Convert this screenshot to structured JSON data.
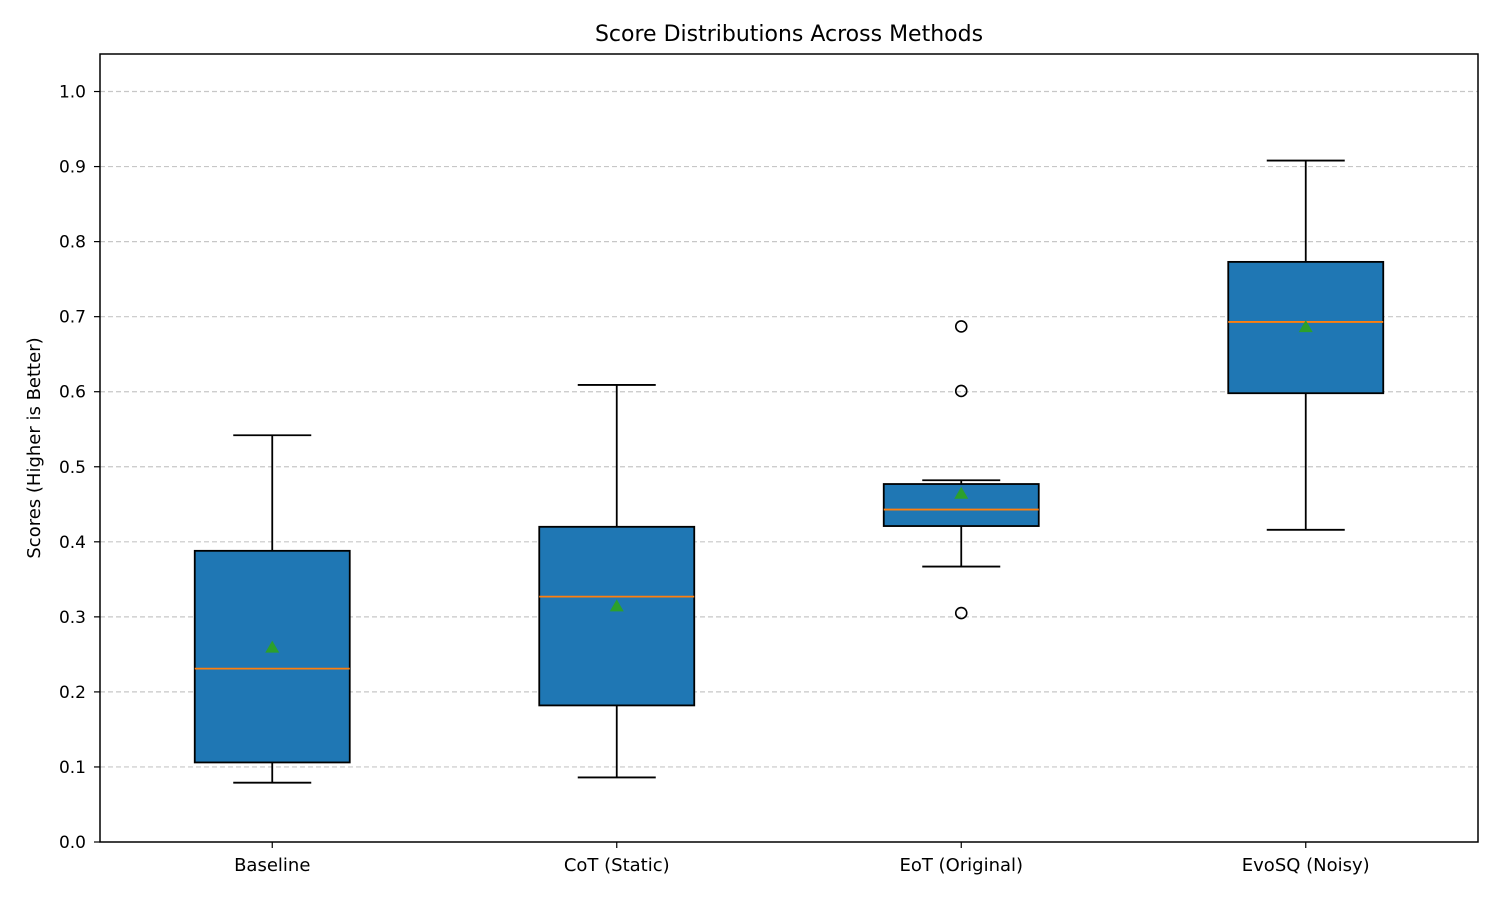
{
  "chart_data": {
    "type": "box",
    "title": "Score Distributions Across Methods",
    "xlabel": "",
    "ylabel": "Scores (Higher is Better)",
    "ylim": [
      0.0,
      1.05
    ],
    "yticks": [
      "0.0",
      "0.1",
      "0.2",
      "0.3",
      "0.4",
      "0.5",
      "0.6",
      "0.7",
      "0.8",
      "0.9",
      "1.0"
    ],
    "grid": "y-dashed",
    "categories": [
      "Baseline",
      "CoT (Static)",
      "EoT (Original)",
      "EvoSQ (Noisy)"
    ],
    "boxes": [
      {
        "whisker_low": 0.079,
        "q1": 0.106,
        "median": 0.231,
        "q3": 0.388,
        "whisker_high": 0.542,
        "mean": 0.259,
        "outliers": []
      },
      {
        "whisker_low": 0.086,
        "q1": 0.182,
        "median": 0.327,
        "q3": 0.42,
        "whisker_high": 0.609,
        "mean": 0.314,
        "outliers": []
      },
      {
        "whisker_low": 0.367,
        "q1": 0.421,
        "median": 0.443,
        "q3": 0.477,
        "whisker_high": 0.482,
        "mean": 0.464,
        "outliers": [
          0.687,
          0.601,
          0.305
        ]
      },
      {
        "whisker_low": 0.416,
        "q1": 0.598,
        "median": 0.693,
        "q3": 0.773,
        "whisker_high": 0.908,
        "mean": 0.686,
        "outliers": []
      }
    ],
    "colors": {
      "box_fill": "#1f77b4",
      "box_edge": "#000000",
      "median": "#ff7f0e",
      "mean": "#2ca02c",
      "grid": "#b0b0b0"
    }
  }
}
